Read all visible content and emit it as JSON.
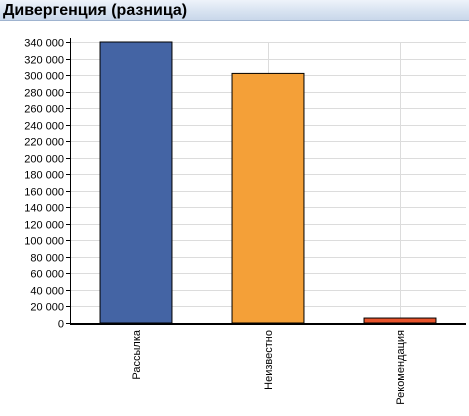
{
  "header": {
    "title": "Дивергенция (разница)"
  },
  "chart_data": {
    "type": "bar",
    "title": "Дивергенция (разница)",
    "categories": [
      "Рассылка",
      "Неизвестно",
      "Рекомендация"
    ],
    "values": [
      340000,
      302000,
      6000
    ],
    "colors": [
      "#4464a4",
      "#f4a038",
      "#e8542c"
    ],
    "yticks": [
      "0",
      "20 000",
      "40 000",
      "60 000",
      "80 000",
      "100 000",
      "120 000",
      "140 000",
      "160 000",
      "180 000",
      "200 000",
      "220 000",
      "240 000",
      "260 000",
      "280 000",
      "300 000",
      "320 000",
      "340 000"
    ],
    "ylim": [
      0,
      340000
    ],
    "xlabel": "",
    "ylabel": "",
    "grid": true,
    "legend": "none"
  }
}
